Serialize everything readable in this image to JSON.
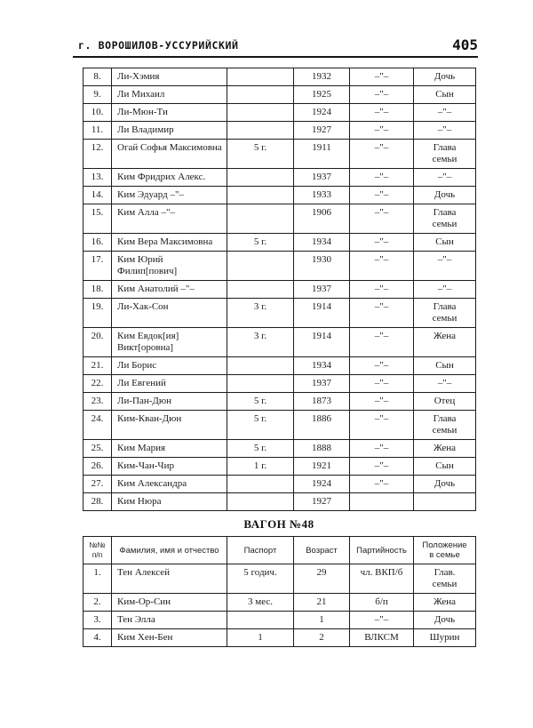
{
  "page": {
    "running_header": "г. ВОРОШИЛОВ-УССУРИЙСКИЙ",
    "page_number": "405"
  },
  "colors": {
    "text": "#1c1c1c",
    "border": "#1c1c1c",
    "background": "#ffffff"
  },
  "continued_table": {
    "rows": [
      {
        "num": "8.",
        "name": "Ли-Хэмия",
        "passport": "",
        "year": "1932",
        "party": "–\"–",
        "family": "Дочь"
      },
      {
        "num": "9.",
        "name": "Ли Михаил",
        "passport": "",
        "year": "1925",
        "party": "–\"–",
        "family": "Сын"
      },
      {
        "num": "10.",
        "name": "Ли-Мюн-Ти",
        "passport": "",
        "year": "1924",
        "party": "–\"–",
        "family": "–\"–"
      },
      {
        "num": "11.",
        "name": "Ли Владимир",
        "passport": "",
        "year": "1927",
        "party": "–\"–",
        "family": "–\"–"
      },
      {
        "num": "12.",
        "name": "Огай Софья Максимовна",
        "passport": "5 г.",
        "year": "1911",
        "party": "–\"–",
        "family": "Глава\nсемьи"
      },
      {
        "num": "13.",
        "name": "Ким Фридрих Алекс.",
        "passport": "",
        "year": "1937",
        "party": "–\"–",
        "family": "–\"–"
      },
      {
        "num": "14.",
        "name": "Ким Эдуард –\"–",
        "passport": "",
        "year": "1933",
        "party": "–\"–",
        "family": "Дочь"
      },
      {
        "num": "15.",
        "name": "Ким Алла –\"–",
        "passport": "",
        "year": "1906",
        "party": "–\"–",
        "family": "Глава\nсемьи"
      },
      {
        "num": "16.",
        "name": "Ким Вера Максимовна",
        "passport": "5 г.",
        "year": "1934",
        "party": "–\"–",
        "family": "Сын"
      },
      {
        "num": "17.",
        "name": "Ким Юрий\nФилип[пович]",
        "passport": "",
        "year": "1930",
        "party": "–\"–",
        "family": "–\"–"
      },
      {
        "num": "18.",
        "name": "Ким Анатолий –\"–",
        "passport": "",
        "year": "1937",
        "party": "–\"–",
        "family": "–\"–"
      },
      {
        "num": "19.",
        "name": "Ли-Хак-Сон",
        "passport": "3 г.",
        "year": "1914",
        "party": "–\"–",
        "family": "Глава\nсемьи"
      },
      {
        "num": "20.",
        "name": "Ким Евдок[ия]\nВикт[оровна]",
        "passport": "3 г.",
        "year": "1914",
        "party": "–\"–",
        "family": "Жена"
      },
      {
        "num": "21.",
        "name": "Ли Борис",
        "passport": "",
        "year": "1934",
        "party": "–\"–",
        "family": "Сын"
      },
      {
        "num": "22.",
        "name": "Ли Евгений",
        "passport": "",
        "year": "1937",
        "party": "–\"–",
        "family": "–\"–"
      },
      {
        "num": "23.",
        "name": "Ли-Пан-Дюн",
        "passport": "5 г.",
        "year": "1873",
        "party": "–\"–",
        "family": "Отец"
      },
      {
        "num": "24.",
        "name": "Ким-Кван-Дюн",
        "passport": "5 г.",
        "year": "1886",
        "party": "–\"–",
        "family": "Глава\nсемьи"
      },
      {
        "num": "25.",
        "name": "Ким Мария",
        "passport": "5 г.",
        "year": "1888",
        "party": "–\"–",
        "family": "Жена"
      },
      {
        "num": "26.",
        "name": "Ким-Чан-Чир",
        "passport": "1 г.",
        "year": "1921",
        "party": "–\"–",
        "family": "Сын"
      },
      {
        "num": "27.",
        "name": "Ким Александра",
        "passport": "",
        "year": "1924",
        "party": "–\"–",
        "family": "Дочь"
      },
      {
        "num": "28.",
        "name": "Ким Нюра",
        "passport": "",
        "year": "1927",
        "party": "",
        "family": ""
      }
    ]
  },
  "wagon48": {
    "title": "ВАГОН №48",
    "headers": {
      "num": "№№\nп/п",
      "name": "Фамилия, имя и отчество",
      "passport": "Паспорт",
      "age": "Возраст",
      "party": "Партийность",
      "family": "Положение\nв семье"
    },
    "rows": [
      {
        "num": "1.",
        "name": "Тен Алексей",
        "passport": "5 годич.",
        "age": "29",
        "party": "чл. ВКП/б",
        "family": "Глав.\nсемьи"
      },
      {
        "num": "2.",
        "name": "Ким-Ор-Син",
        "passport": "3 мес.",
        "age": "21",
        "party": "б/п",
        "family": "Жена"
      },
      {
        "num": "3.",
        "name": "Тен Элла",
        "passport": "",
        "age": "1",
        "party": "–\"–",
        "family": "Дочь"
      },
      {
        "num": "4.",
        "name": "Ким Хен-Бен",
        "passport": "1",
        "age": "2",
        "party": "ВЛКСМ",
        "family": "Шурин"
      }
    ]
  }
}
